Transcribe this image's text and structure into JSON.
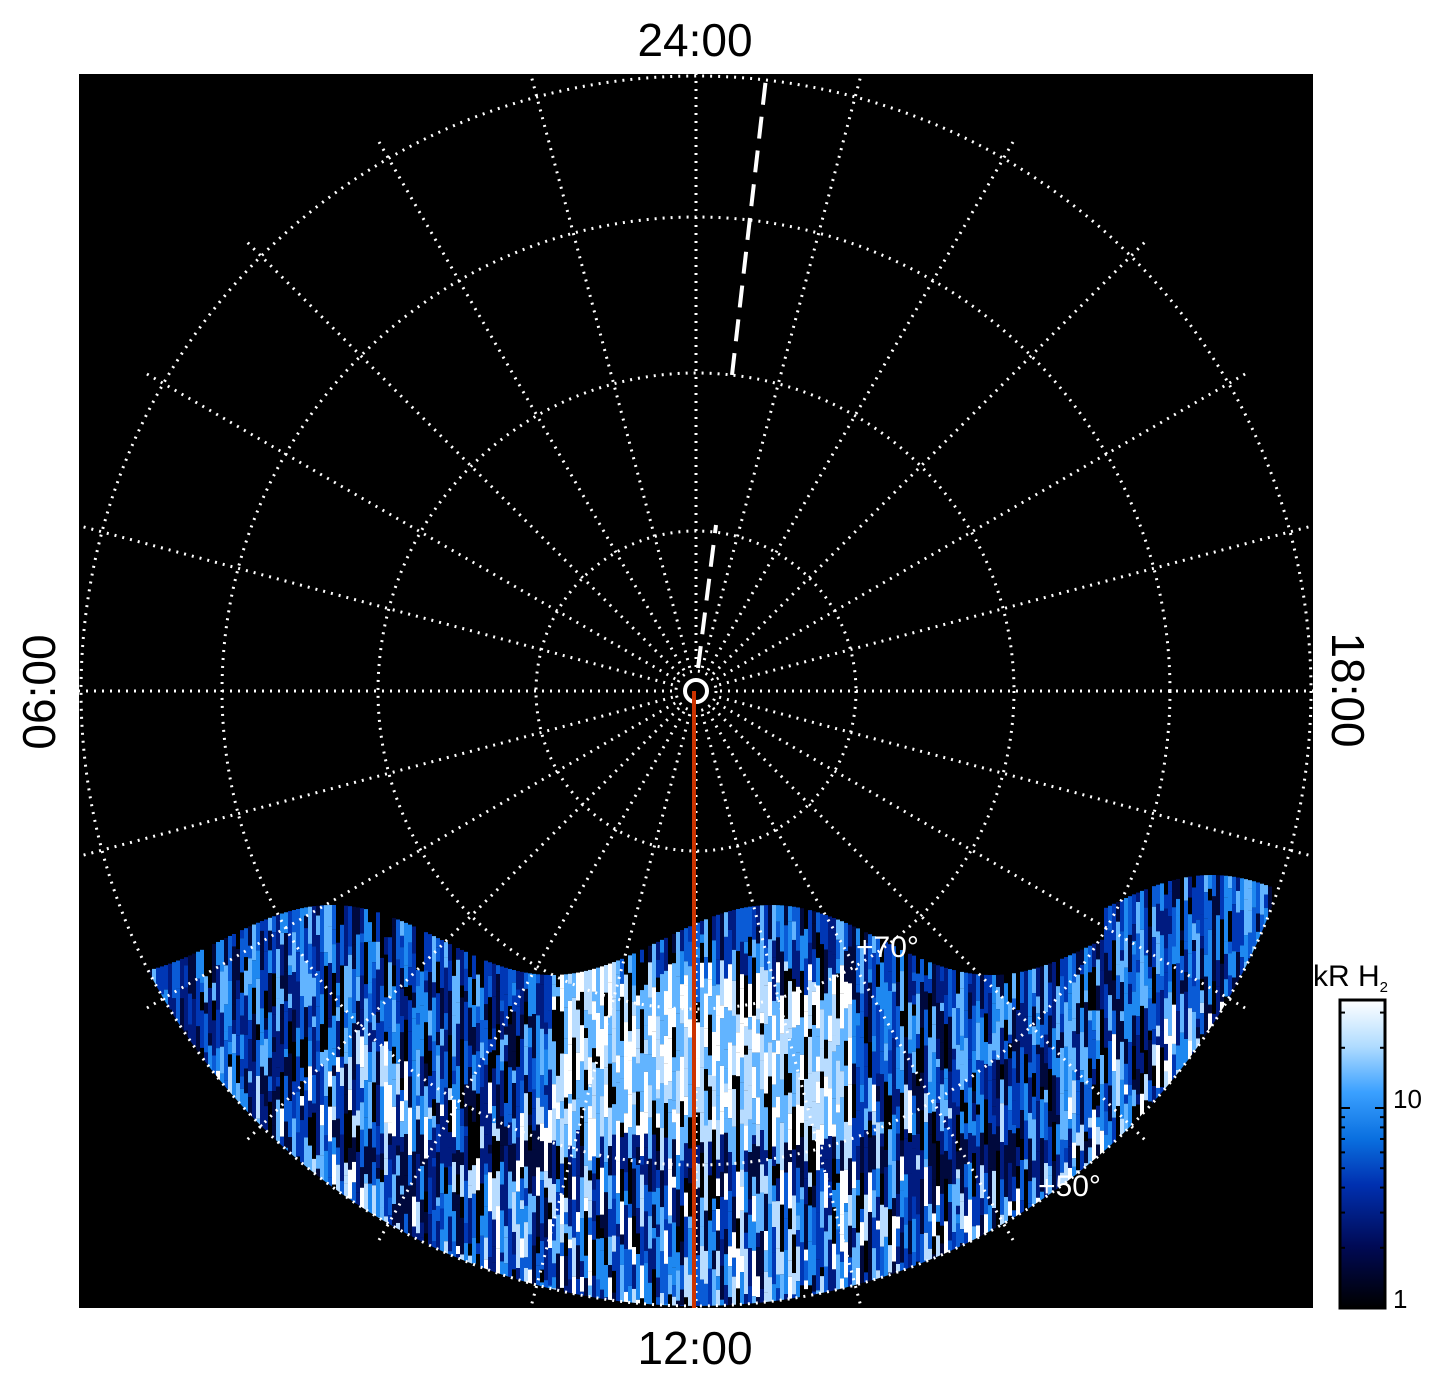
{
  "figure": {
    "projection": "polar",
    "background_color": "#000000",
    "grid_color": "#ffffff",
    "grid_style": "dotted",
    "local_time_labels": {
      "top": "24:00",
      "bottom": "12:00",
      "left": "06:00",
      "right": "18:00"
    },
    "latitude_labels": [
      "+70°",
      "+50°"
    ],
    "meridian_line_color": "#cc3300",
    "dashed_line_color": "#ffffff"
  },
  "colorbar": {
    "title_main": "kR H",
    "title_sub": "2",
    "scale": "log",
    "tick_labels": [
      "1",
      "10"
    ],
    "colors": [
      "#000000",
      "#000a55",
      "#0030b0",
      "#0a70e0",
      "#3aa0ff",
      "#b0dcff",
      "#ffffff"
    ]
  },
  "emission_palette": [
    "#00093d",
    "#001b80",
    "#0037b5",
    "#0a5bd6",
    "#1e88f0",
    "#62b4ff",
    "#b8dcff",
    "#ffffff"
  ]
}
